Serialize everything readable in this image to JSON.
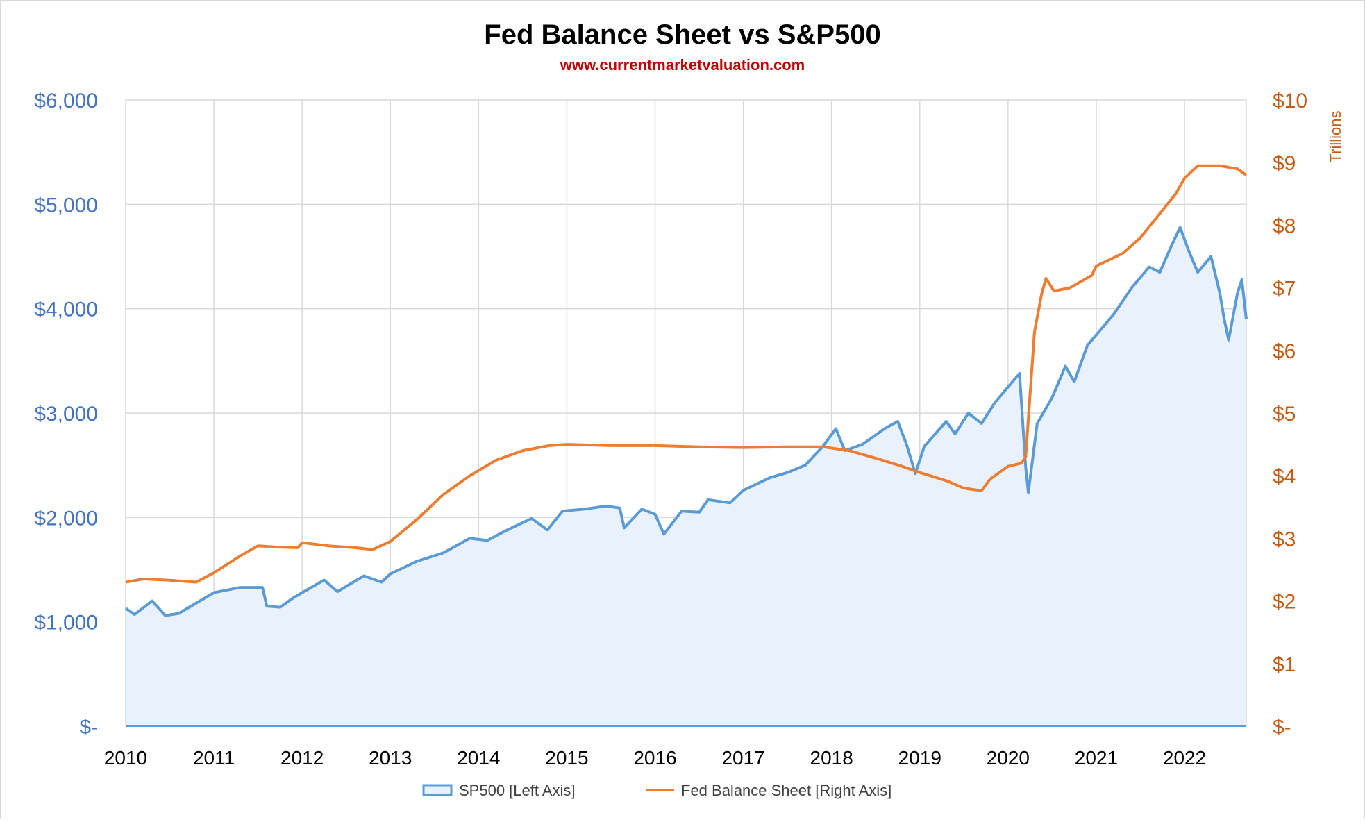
{
  "chart_data": {
    "type": "line",
    "title": "Fed Balance Sheet vs S&P500",
    "subtitle": "www.currentmarketvaluation.com",
    "y_left": {
      "range": [
        0,
        6000
      ],
      "ticks": [
        0,
        1000,
        2000,
        3000,
        4000,
        5000,
        6000
      ],
      "tick_labels": [
        "$-",
        "$1,000",
        "$2,000",
        "$3,000",
        "$4,000",
        "$5,000",
        "$6,000"
      ],
      "color": "#4472c4"
    },
    "y_right": {
      "label": "Trillions",
      "range": [
        0,
        10
      ],
      "ticks": [
        0,
        1,
        2,
        3,
        4,
        5,
        6,
        7,
        8,
        9,
        10
      ],
      "tick_labels": [
        "$-",
        "$1",
        "$2",
        "$3",
        "$4",
        "$5",
        "$6",
        "$7",
        "$8",
        "$9",
        "$10"
      ],
      "color": "#c55a11"
    },
    "x_axis": {
      "range": [
        2010,
        2022.7
      ],
      "ticks": [
        2010,
        2011,
        2012,
        2013,
        2014,
        2015,
        2016,
        2017,
        2018,
        2019,
        2020,
        2021,
        2022
      ],
      "tick_labels": [
        "2010",
        "2011",
        "2012",
        "2013",
        "2014",
        "2015",
        "2016",
        "2017",
        "2018",
        "2019",
        "2020",
        "2021",
        "2022"
      ]
    },
    "grid": true,
    "legend_position": "bottom",
    "series": [
      {
        "name": "SP500 [Left Axis]",
        "axis": "left",
        "style": "area",
        "color": "#5b9bd5",
        "fill": "#e8f1fc",
        "points": [
          [
            2010.0,
            1130
          ],
          [
            2010.1,
            1070
          ],
          [
            2010.3,
            1200
          ],
          [
            2010.45,
            1060
          ],
          [
            2010.6,
            1080
          ],
          [
            2010.8,
            1180
          ],
          [
            2011.0,
            1280
          ],
          [
            2011.3,
            1330
          ],
          [
            2011.55,
            1330
          ],
          [
            2011.6,
            1150
          ],
          [
            2011.75,
            1140
          ],
          [
            2011.9,
            1230
          ],
          [
            2012.0,
            1280
          ],
          [
            2012.25,
            1400
          ],
          [
            2012.4,
            1290
          ],
          [
            2012.7,
            1440
          ],
          [
            2012.9,
            1380
          ],
          [
            2013.0,
            1460
          ],
          [
            2013.3,
            1580
          ],
          [
            2013.45,
            1620
          ],
          [
            2013.6,
            1660
          ],
          [
            2013.9,
            1800
          ],
          [
            2014.1,
            1780
          ],
          [
            2014.3,
            1870
          ],
          [
            2014.5,
            1950
          ],
          [
            2014.6,
            1990
          ],
          [
            2014.78,
            1880
          ],
          [
            2014.95,
            2060
          ],
          [
            2015.2,
            2080
          ],
          [
            2015.45,
            2110
          ],
          [
            2015.6,
            2090
          ],
          [
            2015.65,
            1900
          ],
          [
            2015.85,
            2080
          ],
          [
            2016.0,
            2030
          ],
          [
            2016.1,
            1840
          ],
          [
            2016.3,
            2060
          ],
          [
            2016.5,
            2050
          ],
          [
            2016.6,
            2170
          ],
          [
            2016.85,
            2140
          ],
          [
            2017.0,
            2260
          ],
          [
            2017.3,
            2380
          ],
          [
            2017.5,
            2430
          ],
          [
            2017.7,
            2500
          ],
          [
            2017.9,
            2680
          ],
          [
            2018.05,
            2850
          ],
          [
            2018.15,
            2640
          ],
          [
            2018.35,
            2700
          ],
          [
            2018.6,
            2850
          ],
          [
            2018.75,
            2920
          ],
          [
            2018.85,
            2700
          ],
          [
            2018.95,
            2420
          ],
          [
            2019.05,
            2680
          ],
          [
            2019.3,
            2920
          ],
          [
            2019.4,
            2800
          ],
          [
            2019.55,
            3000
          ],
          [
            2019.7,
            2900
          ],
          [
            2019.85,
            3100
          ],
          [
            2020.0,
            3250
          ],
          [
            2020.13,
            3380
          ],
          [
            2020.2,
            2480
          ],
          [
            2020.23,
            2240
          ],
          [
            2020.33,
            2900
          ],
          [
            2020.5,
            3150
          ],
          [
            2020.65,
            3450
          ],
          [
            2020.75,
            3300
          ],
          [
            2020.9,
            3650
          ],
          [
            2021.0,
            3750
          ],
          [
            2021.2,
            3950
          ],
          [
            2021.4,
            4200
          ],
          [
            2021.6,
            4400
          ],
          [
            2021.72,
            4350
          ],
          [
            2021.85,
            4600
          ],
          [
            2021.95,
            4780
          ],
          [
            2022.05,
            4550
          ],
          [
            2022.15,
            4350
          ],
          [
            2022.3,
            4500
          ],
          [
            2022.4,
            4150
          ],
          [
            2022.45,
            3900
          ],
          [
            2022.5,
            3700
          ],
          [
            2022.6,
            4150
          ],
          [
            2022.65,
            4280
          ],
          [
            2022.7,
            3900
          ]
        ]
      },
      {
        "name": "Fed Balance Sheet [Right Axis]",
        "axis": "right",
        "style": "line",
        "color": "#ed7d31",
        "points": [
          [
            2010.0,
            2.3
          ],
          [
            2010.2,
            2.35
          ],
          [
            2010.5,
            2.33
          ],
          [
            2010.8,
            2.3
          ],
          [
            2011.0,
            2.45
          ],
          [
            2011.3,
            2.72
          ],
          [
            2011.5,
            2.88
          ],
          [
            2011.7,
            2.86
          ],
          [
            2011.95,
            2.85
          ],
          [
            2012.0,
            2.93
          ],
          [
            2012.3,
            2.88
          ],
          [
            2012.6,
            2.85
          ],
          [
            2012.8,
            2.82
          ],
          [
            2013.0,
            2.95
          ],
          [
            2013.3,
            3.3
          ],
          [
            2013.6,
            3.7
          ],
          [
            2013.9,
            4.0
          ],
          [
            2014.2,
            4.25
          ],
          [
            2014.5,
            4.4
          ],
          [
            2014.8,
            4.48
          ],
          [
            2015.0,
            4.5
          ],
          [
            2015.5,
            4.48
          ],
          [
            2016.0,
            4.48
          ],
          [
            2016.5,
            4.46
          ],
          [
            2017.0,
            4.45
          ],
          [
            2017.5,
            4.46
          ],
          [
            2017.9,
            4.46
          ],
          [
            2018.2,
            4.4
          ],
          [
            2018.5,
            4.28
          ],
          [
            2018.8,
            4.15
          ],
          [
            2019.0,
            4.05
          ],
          [
            2019.3,
            3.92
          ],
          [
            2019.5,
            3.8
          ],
          [
            2019.7,
            3.76
          ],
          [
            2019.8,
            3.95
          ],
          [
            2020.0,
            4.15
          ],
          [
            2020.15,
            4.2
          ],
          [
            2020.2,
            4.3
          ],
          [
            2020.25,
            5.3
          ],
          [
            2020.3,
            6.3
          ],
          [
            2020.38,
            6.9
          ],
          [
            2020.43,
            7.15
          ],
          [
            2020.52,
            6.95
          ],
          [
            2020.7,
            7.0
          ],
          [
            2020.95,
            7.2
          ],
          [
            2021.0,
            7.35
          ],
          [
            2021.3,
            7.55
          ],
          [
            2021.5,
            7.8
          ],
          [
            2021.7,
            8.15
          ],
          [
            2021.9,
            8.5
          ],
          [
            2022.0,
            8.75
          ],
          [
            2022.15,
            8.95
          ],
          [
            2022.4,
            8.95
          ],
          [
            2022.6,
            8.9
          ],
          [
            2022.7,
            8.8
          ]
        ]
      }
    ]
  }
}
